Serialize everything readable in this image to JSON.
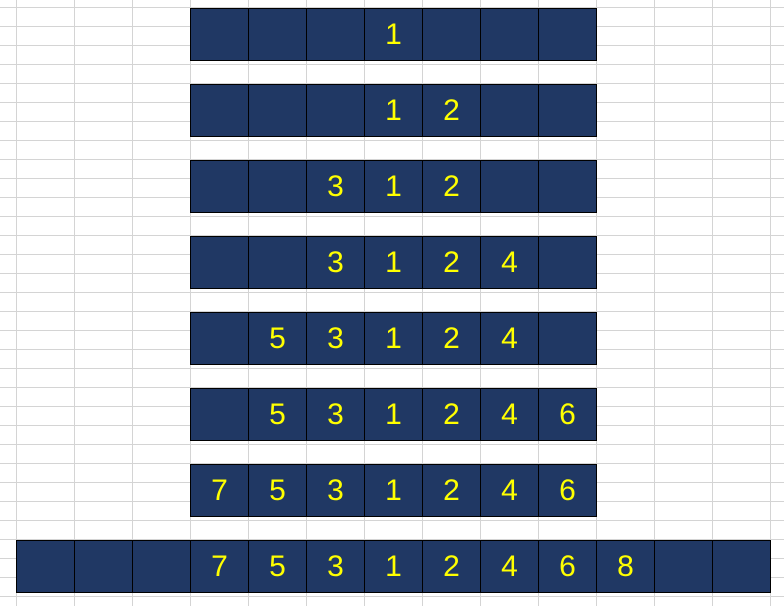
{
  "colors": {
    "cell_fill": "#203864",
    "cell_text": "#FFFF00",
    "grid": "#d4d4d4"
  },
  "rows": [
    {
      "cells": [
        "",
        "",
        "",
        "1",
        "",
        "",
        ""
      ]
    },
    {
      "cells": [
        "",
        "",
        "",
        "1",
        "2",
        "",
        ""
      ]
    },
    {
      "cells": [
        "",
        "",
        "3",
        "1",
        "2",
        "",
        ""
      ]
    },
    {
      "cells": [
        "",
        "",
        "3",
        "1",
        "2",
        "4",
        ""
      ]
    },
    {
      "cells": [
        "",
        "5",
        "3",
        "1",
        "2",
        "4",
        ""
      ]
    },
    {
      "cells": [
        "",
        "5",
        "3",
        "1",
        "2",
        "4",
        "6"
      ]
    },
    {
      "cells": [
        "7",
        "5",
        "3",
        "1",
        "2",
        "4",
        "6"
      ]
    },
    {
      "cells": [
        "",
        "",
        "",
        "7",
        "5",
        "3",
        "1",
        "2",
        "4",
        "6",
        "8",
        "",
        ""
      ]
    }
  ]
}
